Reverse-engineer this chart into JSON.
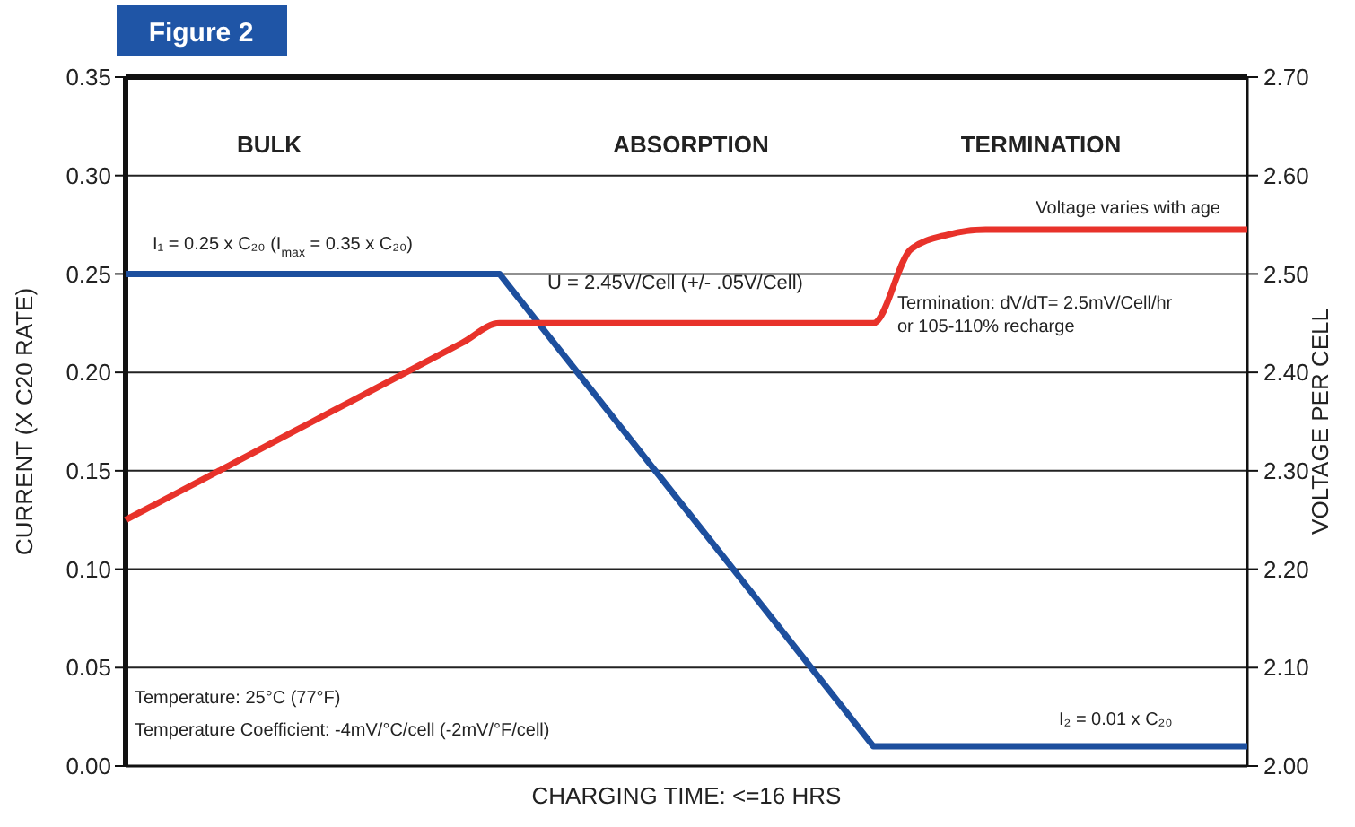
{
  "chart_data": {
    "type": "line",
    "title": "Figure 2",
    "xlabel": "CHARGING TIME: <=16 HRS",
    "ylabel": "CURRENT (X C20 RATE)",
    "y2label": "VOLTAGE PER CELL",
    "categories": [
      null,
      null,
      null,
      null,
      null,
      null,
      null,
      null,
      null,
      null,
      null,
      null,
      null,
      null,
      null,
      null,
      null,
      null,
      null,
      null,
      null,
      null,
      null,
      null,
      null,
      null,
      null,
      null,
      null,
      null,
      null
    ],
    "series": [
      {
        "color": "#1d4f9e",
        "values": [
          0.25,
          0.25,
          0.25,
          0.25,
          0.25,
          0.25,
          0.25,
          0.25,
          0.25,
          0.25,
          0.25,
          0.226,
          0.202,
          0.178,
          0.154,
          0.13,
          0.106,
          0.082,
          0.058,
          0.034,
          0.01,
          0.01,
          0.01,
          0.01,
          0.01,
          0.01,
          0.01,
          0.01,
          0.01,
          0.01,
          0.01
        ]
      },
      {
        "color": "#e8322a",
        "axis": "y2",
        "values": [
          2.25,
          2.27,
          2.29,
          2.31,
          2.33,
          2.35,
          2.37,
          2.39,
          2.41,
          2.43,
          2.45,
          2.45,
          2.45,
          2.45,
          2.45,
          2.45,
          2.45,
          2.45,
          2.45,
          2.45,
          2.45,
          2.525,
          2.54,
          2.545,
          2.545,
          2.545,
          2.545,
          2.545,
          2.545,
          2.545,
          2.545
        ]
      }
    ],
    "ylim": [
      0,
      0.35
    ],
    "yticks": [
      {
        "value": 0,
        "label": "0.00"
      },
      0.05,
      {
        "value": 0.1,
        "label": "0.10"
      },
      0.15,
      {
        "value": 0.2,
        "label": "0.20"
      },
      0.25,
      {
        "value": 0.3,
        "label": "0.30"
      },
      0.35
    ],
    "y2lim": [
      2,
      2.7
    ],
    "y2ticks": [
      {
        "value": 2,
        "label": "2.00"
      },
      {
        "value": 2.1,
        "label": "2.10"
      },
      {
        "value": 2.2,
        "label": "2.20"
      },
      {
        "value": 2.3,
        "label": "2.30"
      },
      {
        "value": 2.4,
        "label": "2.40"
      },
      {
        "value": 2.5,
        "label": "2.50"
      },
      {
        "value": 2.6,
        "label": "2.60"
      },
      {
        "value": 2.7,
        "label": "2.70"
      }
    ],
    "grid": "y",
    "marker": "none",
    "line_style": "solid",
    "annotations": [
      "BULK",
      "ABSORPTION",
      "TERMINATION",
      "I₁ = 0.25 x C₂₀ (I$_{max}$ = 0.35 x C₂₀)",
      "U = 2.45V/Cell (+/- .05V/Cell)",
      "Voltage varies with age",
      "Termination: dV/dT= 2.5mV/Cell/hr\nor 105-110% recharge",
      "I₂ = 0.01 x C₂₀",
      "Temperature: 25°C (77°F)",
      "Temperature Coefficient: -4mV/°C/cell (-2mV/°F/cell)"
    ]
  }
}
